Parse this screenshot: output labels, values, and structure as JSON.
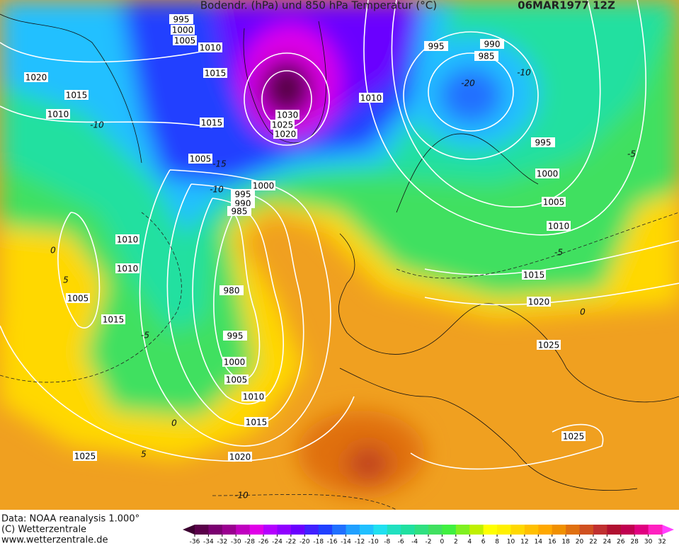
{
  "header": {
    "title": "Bodendr. (hPa) und 850 hPa Temperatur (°C)",
    "date": "06MAR1977 12Z"
  },
  "isobar_labels": [
    995,
    1000,
    1005,
    1010,
    1015,
    1020,
    1015,
    1010,
    1030,
    1025,
    1020,
    1015,
    1005,
    1000,
    995,
    990,
    985,
    1010,
    1010,
    1005,
    1015,
    980,
    995,
    1000,
    1005,
    1010,
    1015,
    1020,
    1025,
    995,
    990,
    985,
    1010,
    995,
    1000,
    1005,
    1010,
    1015,
    1020,
    1025,
    1025
  ],
  "temperature_labels": [
    -10,
    -15,
    -10,
    0,
    5,
    -5,
    0,
    5,
    -10,
    -5,
    0,
    -5,
    -10,
    -20
  ],
  "footer": {
    "source": "Data: NOAA reanalysis 1.000°",
    "copyright": "(C) Wetterzentrale",
    "website": "www.wetterzentrale.de"
  },
  "legend": {
    "ticks": [
      -36,
      -34,
      -32,
      -30,
      -28,
      -26,
      -24,
      -22,
      -20,
      -18,
      -16,
      -14,
      -12,
      -10,
      -8,
      -6,
      -4,
      -2,
      0,
      2,
      4,
      6,
      8,
      10,
      12,
      14,
      16,
      18,
      20,
      22,
      24,
      26,
      28,
      30,
      32
    ],
    "colors": [
      "#3c0030",
      "#5a004a",
      "#7a0070",
      "#9a0090",
      "#c000c0",
      "#e000e8",
      "#b400ff",
      "#9000ff",
      "#6a00ff",
      "#4020ff",
      "#2040ff",
      "#2070ff",
      "#20a0ff",
      "#20c0ff",
      "#20e0f0",
      "#20e0c0",
      "#20e0a0",
      "#30e080",
      "#40e060",
      "#40f040",
      "#80f020",
      "#c0f000",
      "#ffff00",
      "#fff000",
      "#ffd800",
      "#ffc000",
      "#ffa800",
      "#f09000",
      "#e07010",
      "#d05020",
      "#c03030",
      "#b01030",
      "#c00050",
      "#e00080",
      "#ff20c0",
      "#ff40ff"
    ]
  }
}
